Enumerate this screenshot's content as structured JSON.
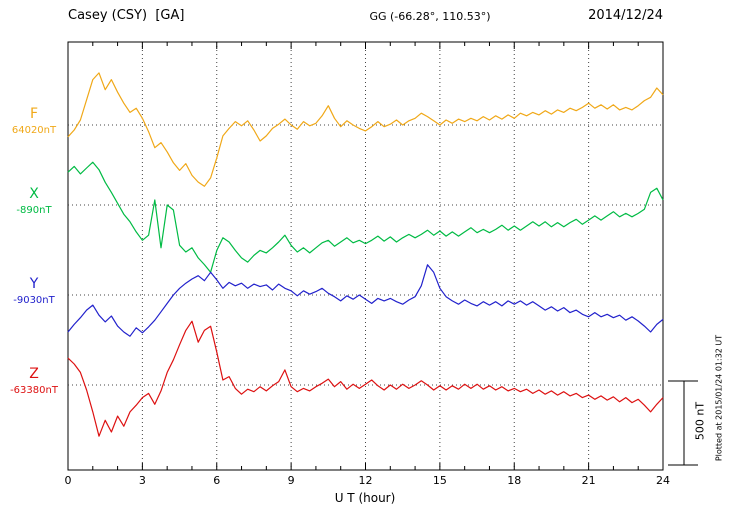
{
  "header": {
    "station": "Casey (CSY)  [GA]",
    "coords": "GG (-66.28°, 110.53°)",
    "date": "2014/12/24"
  },
  "footer": {
    "plotted_at": "Plotted at 2015/01/24 01:32 UT"
  },
  "chart_data": {
    "type": "line",
    "title": "Casey (CSY) [GA] magnetogram for 2014/12/24",
    "xlabel": "U T (hour)",
    "x_range": [
      0,
      24
    ],
    "x_ticks": [
      0,
      3,
      6,
      9,
      12,
      15,
      18,
      21,
      24
    ],
    "x_tick_step": 3,
    "x_minor_step": 1,
    "x_start": 0,
    "x_step_hours": 0.25,
    "grid": "dotted",
    "scale_bar": {
      "label": "500 nT",
      "nT": 500
    },
    "series": [
      {
        "name": "F",
        "baseline_label": "64020nT",
        "color": "#f0a818",
        "offsets_nT": [
          -70,
          -30,
          30,
          150,
          270,
          310,
          210,
          270,
          195,
          130,
          75,
          100,
          40,
          -40,
          -135,
          -105,
          -160,
          -225,
          -270,
          -230,
          -300,
          -340,
          -365,
          -315,
          -195,
          -65,
          -20,
          20,
          -5,
          25,
          -30,
          -95,
          -65,
          -20,
          5,
          35,
          0,
          -25,
          20,
          -5,
          10,
          55,
          115,
          40,
          -10,
          25,
          0,
          -20,
          -35,
          -10,
          20,
          -10,
          5,
          30,
          0,
          25,
          40,
          70,
          50,
          25,
          0,
          30,
          10,
          35,
          20,
          40,
          25,
          50,
          30,
          55,
          35,
          60,
          40,
          70,
          55,
          75,
          60,
          85,
          65,
          90,
          75,
          100,
          85,
          105,
          130,
          100,
          120,
          95,
          120,
          90,
          105,
          90,
          115,
          145,
          165,
          220,
          180
        ]
      },
      {
        "name": "X",
        "baseline_label": "-890nT",
        "color": "#00bb44",
        "offsets_nT": [
          195,
          230,
          185,
          220,
          255,
          210,
          135,
          75,
          10,
          -55,
          -100,
          -160,
          -210,
          -180,
          30,
          -255,
          0,
          -30,
          -240,
          -280,
          -255,
          -315,
          -355,
          -400,
          -270,
          -195,
          -220,
          -270,
          -315,
          -340,
          -300,
          -270,
          -285,
          -255,
          -220,
          -180,
          -240,
          -280,
          -255,
          -285,
          -255,
          -225,
          -210,
          -245,
          -220,
          -195,
          -225,
          -210,
          -230,
          -210,
          -185,
          -215,
          -190,
          -220,
          -195,
          -175,
          -195,
          -175,
          -150,
          -180,
          -155,
          -185,
          -160,
          -185,
          -160,
          -135,
          -165,
          -145,
          -165,
          -145,
          -120,
          -150,
          -125,
          -150,
          -125,
          -100,
          -125,
          -100,
          -130,
          -105,
          -130,
          -105,
          -85,
          -115,
          -90,
          -65,
          -90,
          -65,
          -40,
          -70,
          -50,
          -70,
          -50,
          -25,
          75,
          100,
          30
        ]
      },
      {
        "name": "Y",
        "baseline_label": "-9030nT",
        "color": "#2222cc",
        "offsets_nT": [
          -220,
          -175,
          -135,
          -90,
          -60,
          -120,
          -160,
          -125,
          -185,
          -220,
          -245,
          -195,
          -225,
          -190,
          -150,
          -100,
          -50,
          0,
          40,
          70,
          95,
          115,
          85,
          135,
          90,
          40,
          75,
          55,
          70,
          40,
          65,
          50,
          60,
          30,
          65,
          40,
          25,
          -5,
          25,
          5,
          20,
          40,
          10,
          -10,
          -35,
          -5,
          -25,
          0,
          -25,
          -50,
          -20,
          -35,
          -20,
          -40,
          -55,
          -30,
          -10,
          55,
          180,
          135,
          40,
          -10,
          -35,
          -55,
          -30,
          -50,
          -65,
          -40,
          -60,
          -40,
          -65,
          -35,
          -55,
          -35,
          -60,
          -40,
          -65,
          -90,
          -70,
          -95,
          -75,
          -105,
          -90,
          -115,
          -130,
          -105,
          -130,
          -115,
          -135,
          -120,
          -150,
          -130,
          -155,
          -185,
          -220,
          -175,
          -145
        ]
      },
      {
        "name": "Z",
        "baseline_label": "-63380nT",
        "color": "#dd1111",
        "offsets_nT": [
          160,
          125,
          75,
          -30,
          -160,
          -305,
          -210,
          -280,
          -185,
          -245,
          -160,
          -120,
          -75,
          -50,
          -115,
          -35,
          75,
          150,
          240,
          325,
          380,
          255,
          325,
          350,
          195,
          30,
          50,
          -20,
          -55,
          -25,
          -40,
          -10,
          -35,
          -5,
          20,
          90,
          -10,
          -40,
          -20,
          -35,
          -10,
          10,
          35,
          -10,
          20,
          -25,
          5,
          -20,
          5,
          30,
          -5,
          -30,
          0,
          -25,
          5,
          -20,
          0,
          25,
          0,
          -30,
          -5,
          -30,
          -5,
          -25,
          5,
          -20,
          5,
          -25,
          -5,
          -30,
          -10,
          -35,
          -20,
          -40,
          -25,
          -50,
          -30,
          -55,
          -35,
          -60,
          -40,
          -65,
          -50,
          -75,
          -60,
          -85,
          -65,
          -90,
          -70,
          -100,
          -75,
          -105,
          -85,
          -120,
          -160,
          -115,
          -75
        ]
      }
    ]
  }
}
